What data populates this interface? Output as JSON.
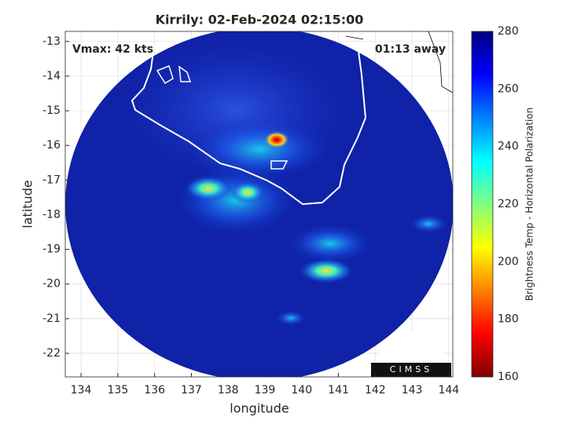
{
  "chart_data": {
    "type": "image",
    "title": "Kirrily: 02-Feb-2024 02:15:00",
    "xlabel": "longitude",
    "ylabel": "latitude",
    "annotations": [
      "Vmax: 42 kts",
      "01:13 away"
    ],
    "logo_text": "CIMSS",
    "xlim": [
      133.57,
      144.11
    ],
    "ylim": [
      -22.68,
      -12.71
    ],
    "xticks": [
      134,
      135,
      136,
      137,
      138,
      139,
      140,
      141,
      142,
      143,
      144
    ],
    "yticks": [
      -13,
      -14,
      -15,
      -16,
      -17,
      -18,
      -19,
      -20,
      -21,
      -22
    ],
    "grid": true,
    "colorbar": {
      "label": "Brightness Temp - Horizontal Polarization",
      "colormap": "jet",
      "lim": [
        160,
        280
      ],
      "ticks": [
        160,
        180,
        200,
        220,
        240,
        260,
        280
      ]
    }
  }
}
